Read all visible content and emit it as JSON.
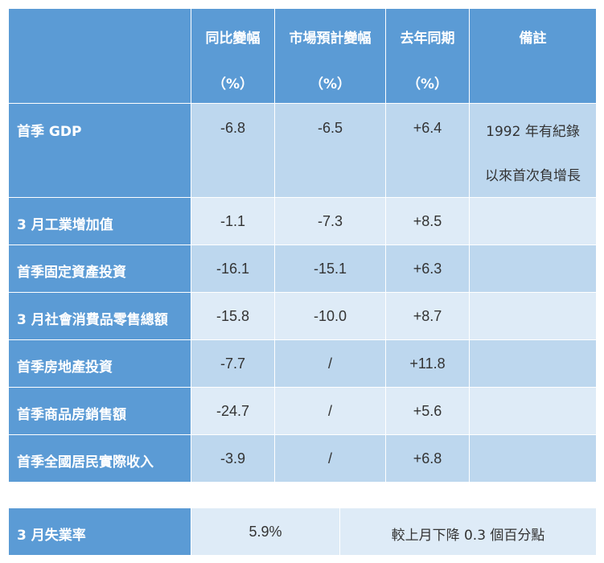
{
  "header": {
    "col1": {
      "line1": "同比變幅",
      "line2": "（%）"
    },
    "col2": {
      "line1": "市場預計變幅",
      "line2": "（%）"
    },
    "col3": {
      "line1": "去年同期",
      "line2": "（%）"
    },
    "col4": {
      "line1": "備註"
    }
  },
  "rows": [
    {
      "label": "首季 GDP",
      "yoy": "-6.8",
      "forecast": "-6.5",
      "last_year": "+6.4",
      "note_line1": "1992 年有紀錄",
      "note_line2": "以來首次負增長"
    },
    {
      "label": "3 月工業增加值",
      "yoy": "-1.1",
      "forecast": "-7.3",
      "last_year": "+8.5"
    },
    {
      "label": "首季固定資產投資",
      "yoy": "-16.1",
      "forecast": "-15.1",
      "last_year": "+6.3"
    },
    {
      "label": "3 月社會消費品零售總額",
      "yoy": "-15.8",
      "forecast": "-10.0",
      "last_year": "+8.7"
    },
    {
      "label": "首季房地產投資",
      "yoy": "-7.7",
      "forecast": "/",
      "last_year": "+11.8"
    },
    {
      "label": "首季商品房銷售額",
      "yoy": "-24.7",
      "forecast": "/",
      "last_year": "+5.6"
    },
    {
      "label": "首季全國居民實際收入",
      "yoy": "-3.9",
      "forecast": "/",
      "last_year": "+6.8"
    }
  ],
  "unemployment": {
    "label": "3 月失業率",
    "value": "5.9%",
    "note": "較上月下降 0.3 個百分點"
  }
}
